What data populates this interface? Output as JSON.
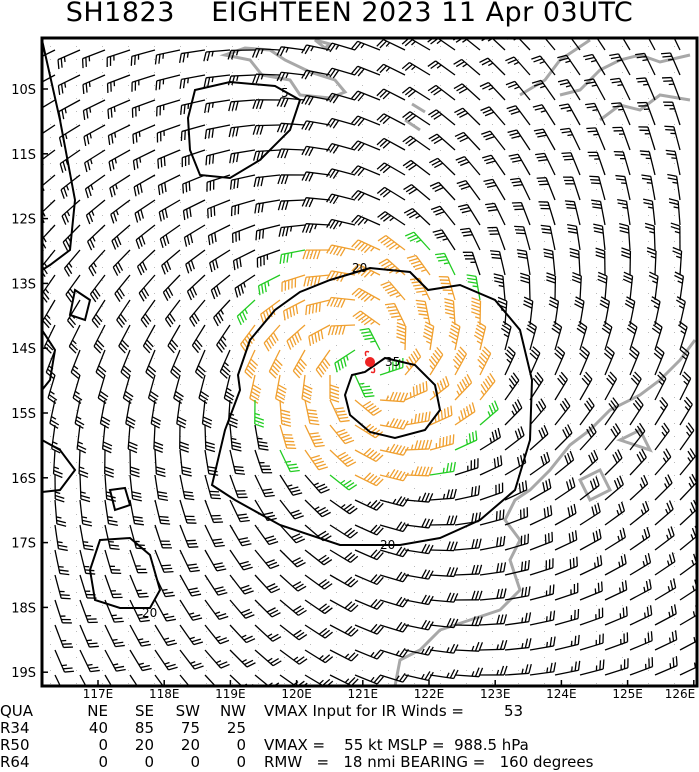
{
  "title": "SH1823    EIGHTEEN 2023 11 Apr 03UTC",
  "lon_ticks": [
    "117E",
    "118E",
    "119E",
    "120E",
    "121E",
    "122E",
    "123E",
    "124E",
    "125E",
    "126E"
  ],
  "lat_ticks": [
    "10S",
    "11S",
    "12S",
    "13S",
    "14S",
    "15S",
    "16S",
    "17S",
    "18S",
    "19S"
  ],
  "contour_labels": [
    "5",
    "20",
    "35",
    "20",
    "20"
  ],
  "colors": {
    "barb_low": "#000000",
    "barb_34": "#22cc22",
    "barb_50": "#f0a030",
    "coast": "#a8a8a8",
    "center": "#ee2222"
  },
  "storm_center": {
    "lon": 121.1,
    "lat": -14.2
  },
  "table": {
    "header": [
      "QUA",
      "NE",
      "SE",
      "SW",
      "NW"
    ],
    "rows": [
      [
        "R34",
        "40",
        "85",
        "75",
        "25"
      ],
      [
        "R50",
        "0",
        "20",
        "20",
        "0"
      ],
      [
        "R64",
        "0",
        "0",
        "0",
        "0"
      ]
    ],
    "vmax_ir_label": "VMAX Input for IR Winds =",
    "vmax_ir_value": "53",
    "vmax_line": "VMAX =    55 kt MSLP =  988.5 hPa",
    "rmw_line": "RMW   =   18 nmi BEARING =   160 degrees"
  }
}
